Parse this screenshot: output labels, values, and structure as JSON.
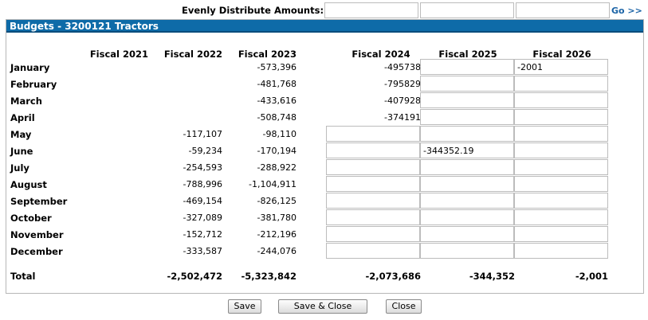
{
  "distribute": {
    "label": "Evenly Distribute Amounts:",
    "go_label": "Go >>",
    "inputs": [
      "",
      "",
      ""
    ]
  },
  "panel": {
    "title": "Budgets - 3200121 Tractors"
  },
  "columns": [
    "Fiscal 2021",
    "Fiscal 2022",
    "Fiscal 2023",
    "Fiscal 2024",
    "Fiscal 2025",
    "Fiscal 2026"
  ],
  "months": [
    {
      "label": "January",
      "f2021": "",
      "f2022": "",
      "f2023": "-573,396",
      "f2024": "-495738",
      "f2025": "",
      "f2026": "-2001"
    },
    {
      "label": "February",
      "f2021": "",
      "f2022": "",
      "f2023": "-481,768",
      "f2024": "-795829",
      "f2025": "",
      "f2026": ""
    },
    {
      "label": "March",
      "f2021": "",
      "f2022": "",
      "f2023": "-433,616",
      "f2024": "-407928",
      "f2025": "",
      "f2026": ""
    },
    {
      "label": "April",
      "f2021": "",
      "f2022": "",
      "f2023": "-508,748",
      "f2024": "-374191",
      "f2025": "",
      "f2026": ""
    },
    {
      "label": "May",
      "f2021": "",
      "f2022": "-117,107",
      "f2023": "-98,110",
      "f2024": "",
      "f2025": "",
      "f2026": ""
    },
    {
      "label": "June",
      "f2021": "",
      "f2022": "-59,234",
      "f2023": "-170,194",
      "f2024": "",
      "f2025": "-344352.19",
      "f2026": ""
    },
    {
      "label": "July",
      "f2021": "",
      "f2022": "-254,593",
      "f2023": "-288,922",
      "f2024": "",
      "f2025": "",
      "f2026": ""
    },
    {
      "label": "August",
      "f2021": "",
      "f2022": "-788,996",
      "f2023": "-1,104,911",
      "f2024": "",
      "f2025": "",
      "f2026": ""
    },
    {
      "label": "September",
      "f2021": "",
      "f2022": "-469,154",
      "f2023": "-826,125",
      "f2024": "",
      "f2025": "",
      "f2026": ""
    },
    {
      "label": "October",
      "f2021": "",
      "f2022": "-327,089",
      "f2023": "-381,780",
      "f2024": "",
      "f2025": "",
      "f2026": ""
    },
    {
      "label": "November",
      "f2021": "",
      "f2022": "-152,712",
      "f2023": "-212,196",
      "f2024": "",
      "f2025": "",
      "f2026": ""
    },
    {
      "label": "December",
      "f2021": "",
      "f2022": "-333,587",
      "f2023": "-244,076",
      "f2024": "",
      "f2025": "",
      "f2026": ""
    }
  ],
  "total": {
    "label": "Total",
    "f2021": "",
    "f2022": "-2,502,472",
    "f2023": "-5,323,842",
    "f2024": "-2,073,686",
    "f2025": "-344,352",
    "f2026": "-2,001"
  },
  "buttons": {
    "save": "Save",
    "save_close": "Save & Close",
    "close": "Close"
  }
}
